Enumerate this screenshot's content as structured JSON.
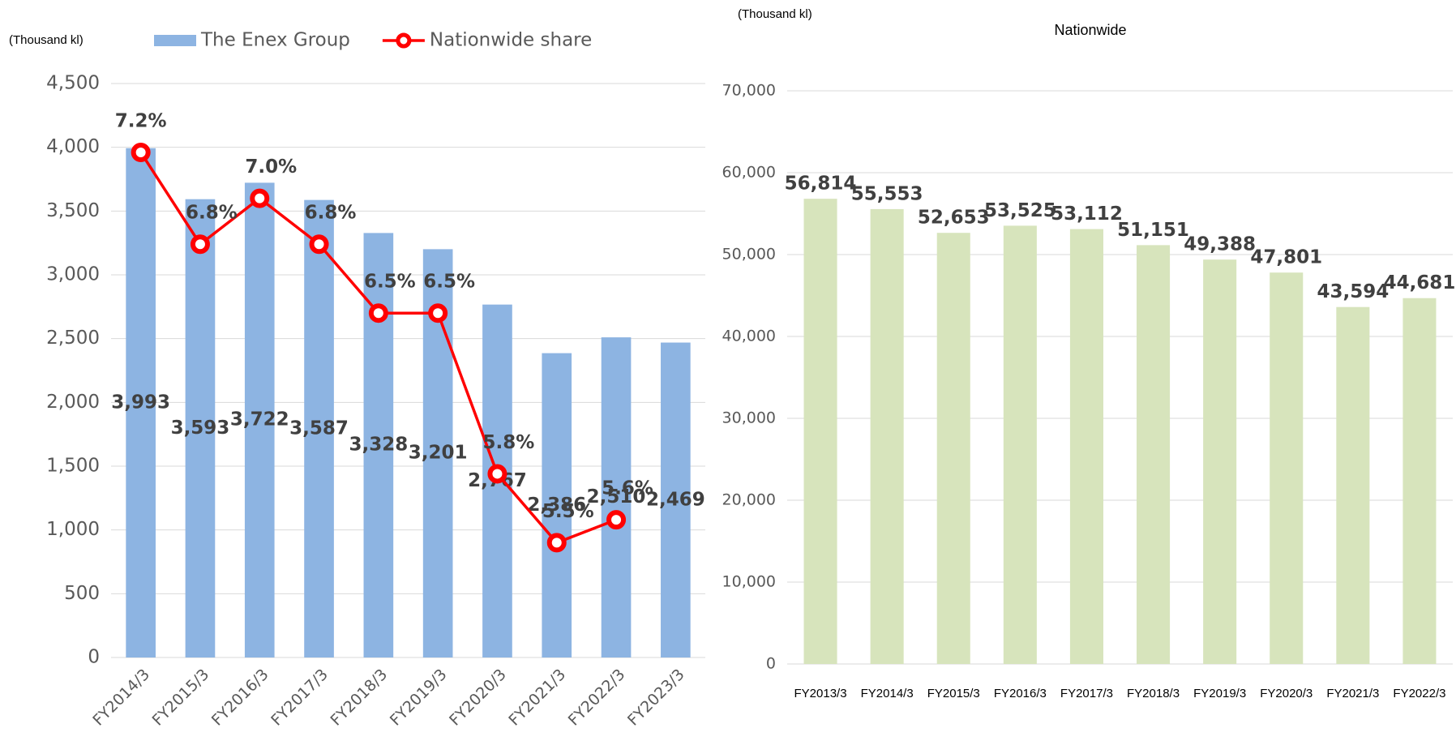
{
  "chart_data": [
    {
      "type": "combo",
      "unit_label": "(Thousand kl)",
      "categories": [
        "FY2014/3",
        "FY2015/3",
        "FY2016/3",
        "FY2017/3",
        "FY2018/3",
        "FY2019/3",
        "FY2020/3",
        "FY2021/3",
        "FY2022/3",
        "FY2023/3"
      ],
      "series": [
        {
          "name": "The Enex Group",
          "type": "bar",
          "color": "#8db4e2",
          "values": [
            3993,
            3593,
            3722,
            3587,
            3328,
            3201,
            2767,
            2386,
            2510,
            2469
          ],
          "value_labels": [
            "3,993",
            "3,593",
            "3,722",
            "3,587",
            "3,328",
            "3,201",
            "2,767",
            "2,386",
            "2,510",
            "2,469"
          ]
        },
        {
          "name": "Nationwide share",
          "type": "line",
          "color": "#ff0000",
          "axis": "y2",
          "values": [
            7.2,
            6.8,
            7.0,
            6.8,
            6.5,
            6.5,
            5.8,
            5.5,
            5.6,
            null
          ],
          "value_labels": [
            "7.2%",
            "6.8%",
            "7.0%",
            "6.8%",
            "6.5%",
            "6.5%",
            "5.8%",
            "5.5%",
            "5.6%",
            null
          ]
        }
      ],
      "ylim": [
        0,
        4500
      ],
      "yticks": [
        0,
        500,
        {
          "value": 1000,
          "label": "1,000"
        },
        {
          "value": 1500,
          "label": "1,500"
        },
        {
          "value": 2000,
          "label": "2,000"
        },
        {
          "value": 2500,
          "label": "2,500"
        },
        {
          "value": 3000,
          "label": "3,000"
        },
        {
          "value": 3500,
          "label": "3,500"
        },
        {
          "value": 4000,
          "label": "4,000"
        },
        {
          "value": 4500,
          "label": "4,500"
        }
      ],
      "y2lim": [
        5,
        7.5
      ],
      "grid": true,
      "legend": "top"
    },
    {
      "type": "bar",
      "title": "Nationwide",
      "unit_label": "(Thousand kl)",
      "categories": [
        "FY2013/3",
        "FY2014/3",
        "FY2015/3",
        "FY2016/3",
        "FY2017/3",
        "FY2018/3",
        "FY2019/3",
        "FY2020/3",
        "FY2021/3",
        "FY2022/3"
      ],
      "color": "#d7e4bc",
      "values": [
        56814,
        55553,
        52653,
        53525,
        53112,
        51151,
        49388,
        47801,
        43594,
        44681
      ],
      "value_labels": [
        "56,814",
        "55,553",
        "52,653",
        "53,525",
        "53,112",
        "51,151",
        "49,388",
        "47,801",
        "43,594",
        "44,681"
      ],
      "ylim": [
        0,
        70000
      ],
      "yticks": [
        0,
        {
          "value": 10000,
          "label": "10,000"
        },
        {
          "value": 20000,
          "label": "20,000"
        },
        {
          "value": 30000,
          "label": "30,000"
        },
        {
          "value": 40000,
          "label": "40,000"
        },
        {
          "value": 50000,
          "label": "50,000"
        },
        {
          "value": 60000,
          "label": "60,000"
        },
        {
          "value": 70000,
          "label": "70,000"
        }
      ],
      "grid": true
    }
  ]
}
